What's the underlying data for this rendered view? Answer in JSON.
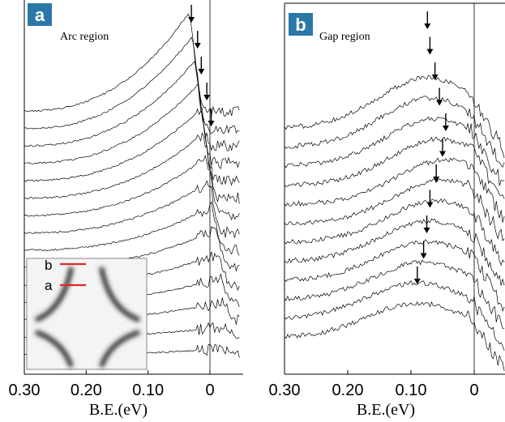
{
  "chart_data": [
    {
      "type": "line",
      "panel_label": "a",
      "title": "Arc region",
      "xlabel": "B.E.(eV)",
      "ylabel": "",
      "xlim": [
        0.3,
        -0.05
      ],
      "x_reversed": true,
      "x_ticks": [
        0.3,
        0.2,
        0.1,
        0.0
      ],
      "x_tick_labels": [
        "0.30",
        "0.20",
        "0.10",
        "0"
      ],
      "grid": false,
      "vertical_reference_line_x": 0.0,
      "series_count": 15,
      "peak_arrow_positions": [
        0.03,
        0.02,
        0.014,
        0.005,
        -0.002
      ],
      "inset": {
        "labels": [
          "b",
          "a"
        ],
        "marker_color": "#e0262b"
      },
      "colors": {
        "badge": "#2b78a8",
        "line": "#000000"
      }
    },
    {
      "type": "line",
      "panel_label": "b",
      "title": "Gap region",
      "xlabel": "B.E.(eV)",
      "ylabel": "",
      "xlim": [
        0.3,
        -0.05
      ],
      "x_reversed": true,
      "x_ticks": [
        0.3,
        0.2,
        0.1,
        0.0
      ],
      "x_tick_labels": [
        "0.30",
        "0.20",
        "0.10",
        "0"
      ],
      "grid": false,
      "vertical_reference_line_x": 0.0,
      "series_count": 12,
      "peak_arrow_positions": [
        0.074,
        0.07,
        0.062,
        0.055,
        0.045,
        0.05,
        0.06,
        0.07,
        0.075,
        0.08,
        0.09
      ],
      "colors": {
        "badge": "#2b78a8",
        "line": "#000000"
      }
    }
  ]
}
